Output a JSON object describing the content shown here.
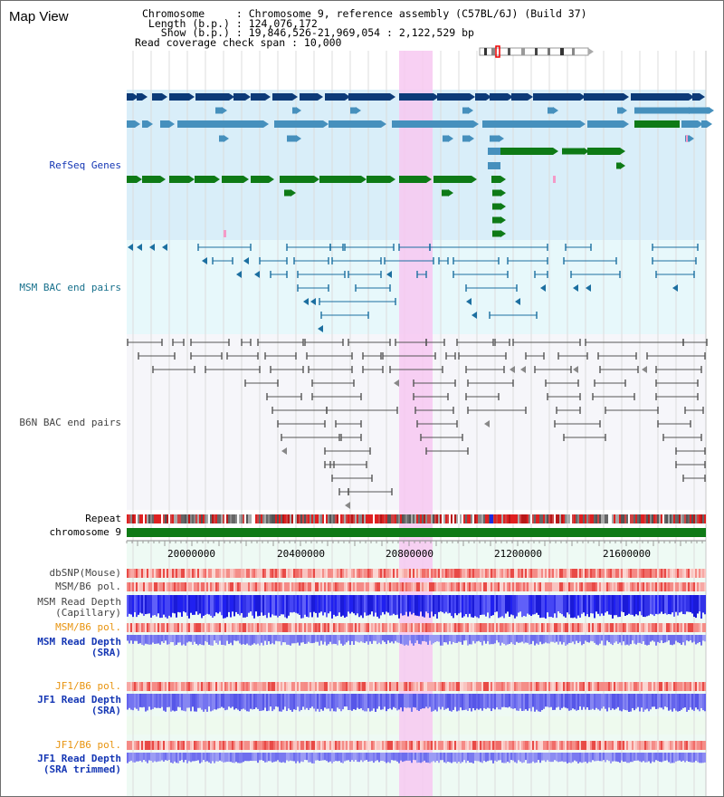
{
  "view": {
    "title": "Map View",
    "chromosome_line": "Chromosome     : Chromosome 9, reference assembly (C57BL/6J) (Build 37)",
    "length_line": " Length (b.p.) : 124,076,172",
    "show_line": "   Show (b.p.) : 19,846,526-21,969,054 : 2,122,529 bp",
    "coverage_line": "Read coverage check span : 10,000"
  },
  "tracks": {
    "refseq": "RefSeq Genes",
    "msm_bac": "MSM BAC end pairs",
    "b6n_bac": "B6N BAC end pairs",
    "repeat": "Repeat",
    "chromosome": "chromosome 9",
    "dbsnp": "dbSNP(Mouse)",
    "msm_pol1": "MSM/B6 pol.",
    "msm_depth_cap": "MSM Read Depth\n(Capillary)",
    "msm_pol2": "MSM/B6 pol.",
    "msm_depth_sra": "MSM Read Depth\n(SRA)",
    "jf1_pol1": "JF1/B6 pol.",
    "jf1_depth_sra": "JF1 Read Depth\n(SRA)",
    "jf1_pol2": "JF1/B6 pol.",
    "jf1_depth_trim": "JF1 Read Depth\n(SRA trimmed)"
  },
  "ruler": {
    "ticks": [
      "20000000",
      "20400000",
      "20800000",
      "21200000",
      "21600000"
    ]
  },
  "colors": {
    "gene_dark": "#0c3a78",
    "gene_mid": "#4690bd",
    "gene_green": "#0e7a16",
    "msm_pair": "#1c6fa0",
    "b6n_pair": "#555555",
    "highlight": "#f7c8f1",
    "refseq_bg": "#d9eef9",
    "msm_bg": "#e7f8fb",
    "label_blue": "#1436b4",
    "label_teal": "#17708c",
    "label_orange": "#e89410",
    "label_gray": "#444444"
  }
}
